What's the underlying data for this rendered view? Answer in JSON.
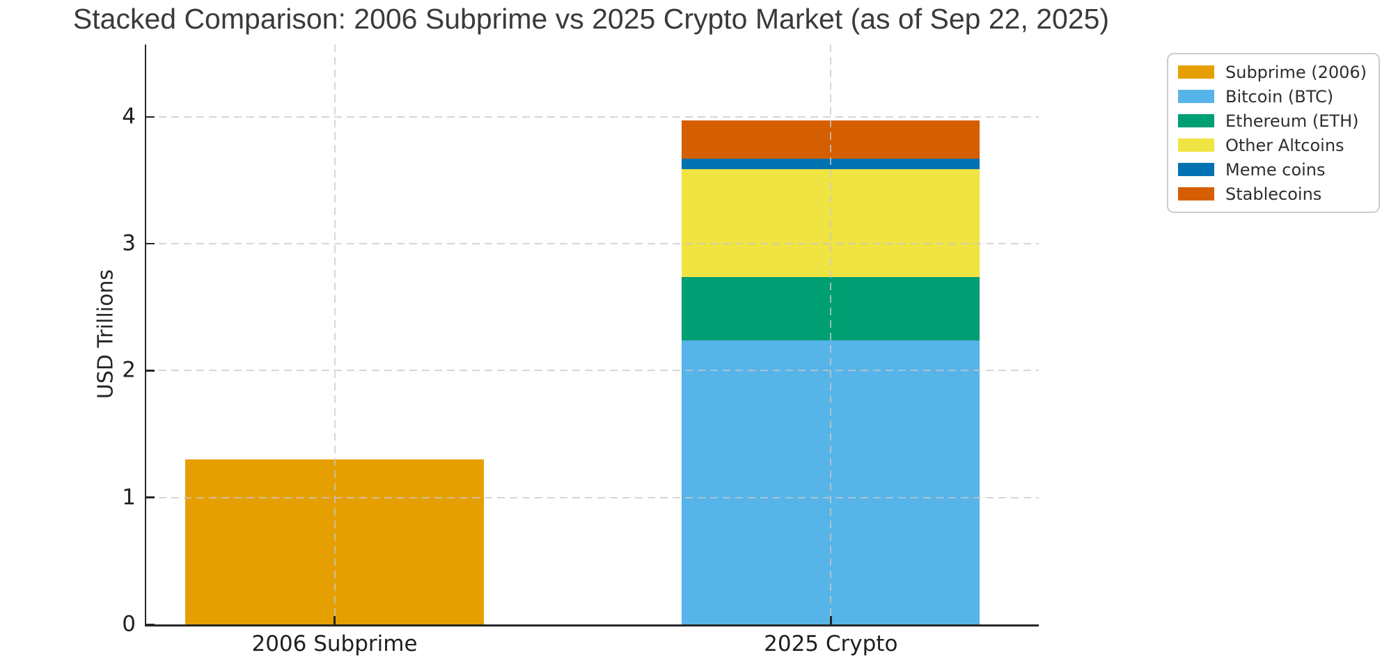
{
  "chart_data": {
    "type": "bar",
    "stacked": true,
    "title": "Stacked Comparison: 2006 Subprime vs 2025 Crypto Market (as of Sep 22, 2025)",
    "ylabel": "USD Trillions",
    "xlabel": "",
    "categories": [
      "2006 Subprime",
      "2025 Crypto"
    ],
    "series": [
      {
        "name": "Subprime (2006)",
        "color": "#E69F00",
        "values": [
          1.3,
          0
        ]
      },
      {
        "name": "Bitcoin (BTC)",
        "color": "#56B4E9",
        "values": [
          0,
          2.24
        ]
      },
      {
        "name": "Ethereum (ETH)",
        "color": "#009E73",
        "values": [
          0,
          0.5
        ]
      },
      {
        "name": "Other Altcoins",
        "color": "#F0E442",
        "values": [
          0,
          0.85
        ]
      },
      {
        "name": "Meme coins",
        "color": "#0072B2",
        "values": [
          0,
          0.08
        ]
      },
      {
        "name": "Stablecoins",
        "color": "#D55E00",
        "values": [
          0,
          0.3
        ]
      }
    ],
    "stack_totals": [
      1.3,
      3.97
    ],
    "yticks": [
      0,
      1,
      2,
      3,
      4
    ],
    "ylim": [
      0,
      4.57
    ],
    "grid": {
      "visible": true,
      "style": "dashed",
      "axes": "both",
      "color": "#c8c8c8",
      "drawn_over_bars": true
    },
    "legend": {
      "position": "upper-right-outside",
      "entries": [
        "Subprime (2006)",
        "Bitcoin (BTC)",
        "Ethereum (ETH)",
        "Other Altcoins",
        "Meme coins",
        "Stablecoins"
      ]
    }
  },
  "colors": {
    "background": "#ffffff",
    "spine": "#262626",
    "tick_text": "#1f1f1f",
    "title_text": "#3a3a3a",
    "legend_border": "#cccccc"
  }
}
